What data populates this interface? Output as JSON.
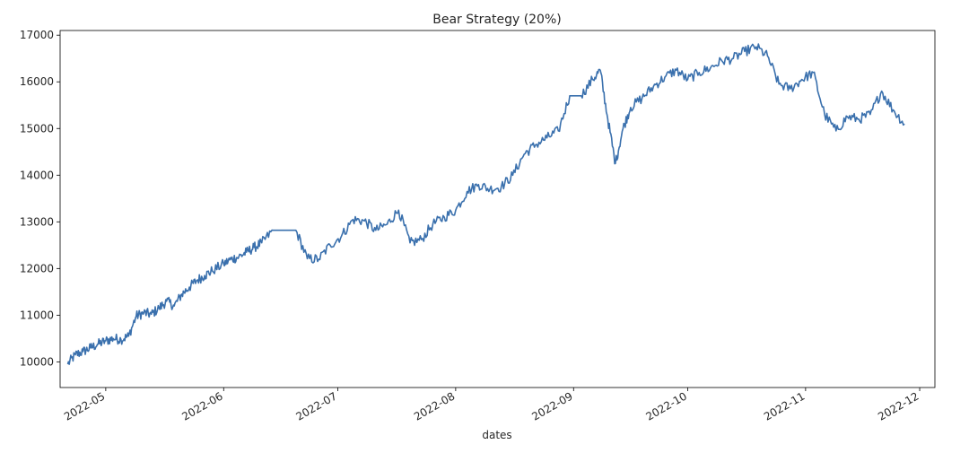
{
  "chart_data": {
    "type": "line",
    "title": "Bear Strategy (20%)",
    "xlabel": "dates",
    "ylabel": "",
    "x_ticks": [
      "2022-05",
      "2022-06",
      "2022-07",
      "2022-08",
      "2022-09",
      "2022-10",
      "2022-11",
      "2022-12"
    ],
    "y_ticks": [
      10000,
      11000,
      12000,
      13000,
      14000,
      15000,
      16000,
      17000
    ],
    "xlim": [
      "2022-04-19",
      "2022-12-05"
    ],
    "ylim": [
      9450,
      17100
    ],
    "grid": false,
    "line_color": "#3a70ad",
    "series": [
      {
        "x": [
          "2022-04-21",
          "2022-04-23",
          "2022-04-25",
          "2022-04-27",
          "2022-04-29",
          "2022-05-01",
          "2022-05-03",
          "2022-05-05",
          "2022-05-07",
          "2022-05-09",
          "2022-05-11",
          "2022-05-13",
          "2022-05-15",
          "2022-05-17",
          "2022-05-19",
          "2022-05-21",
          "2022-05-23",
          "2022-05-25",
          "2022-05-27",
          "2022-05-29",
          "2022-06-01",
          "2022-06-03",
          "2022-06-05",
          "2022-06-07",
          "2022-06-09",
          "2022-06-11",
          "2022-06-14",
          "2022-06-17",
          "2022-06-20",
          "2022-06-23",
          "2022-06-26",
          "2022-06-29",
          "2022-07-02",
          "2022-07-05",
          "2022-07-08",
          "2022-07-11",
          "2022-07-14",
          "2022-07-17",
          "2022-07-20",
          "2022-07-23",
          "2022-07-26",
          "2022-07-29",
          "2022-08-01",
          "2022-08-04",
          "2022-08-07",
          "2022-08-10",
          "2022-08-13",
          "2022-08-16",
          "2022-08-19",
          "2022-08-22",
          "2022-08-25",
          "2022-08-28",
          "2022-08-31",
          "2022-09-03",
          "2022-09-06",
          "2022-09-08",
          "2022-09-10",
          "2022-09-12",
          "2022-09-14",
          "2022-09-16",
          "2022-09-19",
          "2022-09-22",
          "2022-09-25",
          "2022-09-28",
          "2022-10-01",
          "2022-10-04",
          "2022-10-07",
          "2022-10-10",
          "2022-10-13",
          "2022-10-16",
          "2022-10-19",
          "2022-10-22",
          "2022-10-25",
          "2022-10-28",
          "2022-10-31",
          "2022-11-03",
          "2022-11-06",
          "2022-11-09",
          "2022-11-12",
          "2022-11-15",
          "2022-11-18",
          "2022-11-21",
          "2022-11-24",
          "2022-11-27"
        ],
        "values": [
          9950,
          10150,
          10220,
          10300,
          10380,
          10450,
          10500,
          10480,
          10550,
          10980,
          11050,
          11020,
          11150,
          11300,
          11200,
          11450,
          11600,
          11750,
          11850,
          11950,
          12100,
          12200,
          12250,
          12350,
          12450,
          12550,
          12820,
          12820,
          12820,
          12210,
          12200,
          12500,
          12700,
          13050,
          13020,
          12820,
          12950,
          13250,
          12550,
          12620,
          12950,
          13100,
          13250,
          13650,
          13800,
          13700,
          13750,
          14000,
          14450,
          14650,
          14800,
          14950,
          15700,
          15700,
          16050,
          16250,
          15200,
          14250,
          15000,
          15450,
          15650,
          15900,
          16100,
          16250,
          16050,
          16200,
          16300,
          16450,
          16500,
          16650,
          16750,
          16550,
          15950,
          15850,
          16050,
          16200,
          15300,
          14950,
          15250,
          15200,
          15300,
          15800,
          15400,
          15100
        ]
      }
    ]
  }
}
